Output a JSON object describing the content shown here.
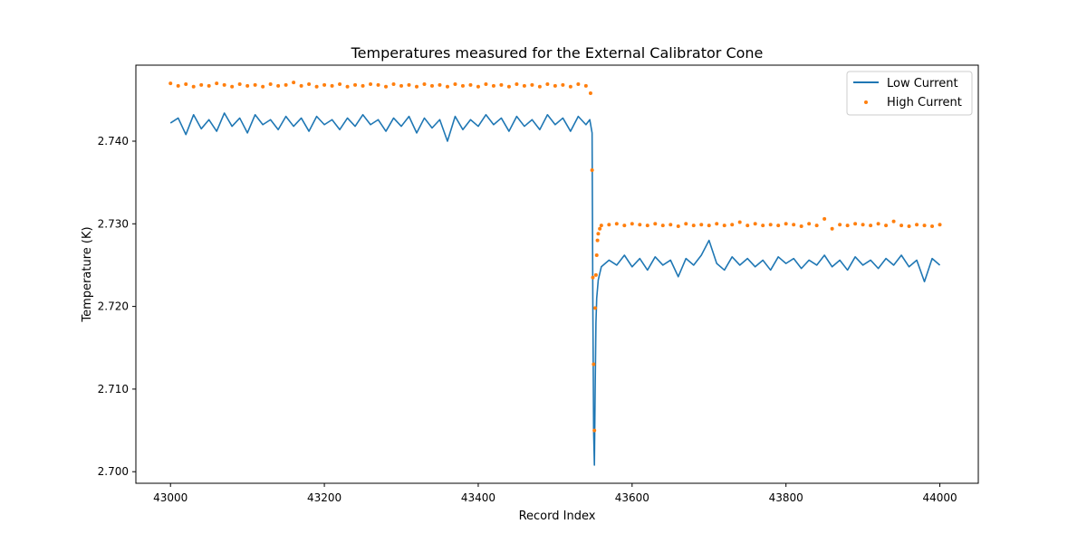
{
  "chart_data": {
    "type": "line",
    "title": "Temperatures measured for the External Calibrator Cone",
    "xlabel": "Record Index",
    "ylabel": "Temperature (K)",
    "xlim": [
      42955,
      44050
    ],
    "ylim": [
      2.6986,
      2.7492
    ],
    "xticks": [
      43000,
      43200,
      43400,
      43600,
      43800,
      44000
    ],
    "xtick_labels": [
      "43000",
      "43200",
      "43400",
      "43600",
      "43800",
      "44000"
    ],
    "yticks": [
      2.7,
      2.71,
      2.72,
      2.73,
      2.74
    ],
    "ytick_labels": [
      "2.700",
      "2.710",
      "2.720",
      "2.730",
      "2.740"
    ],
    "grid": false,
    "legend_position": "top-right",
    "series": [
      {
        "name": "Low Current",
        "style": "line",
        "color": "#1f77b4",
        "x": [
          43000,
          43010,
          43020,
          43030,
          43040,
          43050,
          43060,
          43070,
          43080,
          43090,
          43100,
          43110,
          43120,
          43130,
          43140,
          43150,
          43160,
          43170,
          43180,
          43190,
          43200,
          43210,
          43220,
          43230,
          43240,
          43250,
          43260,
          43270,
          43280,
          43290,
          43300,
          43310,
          43320,
          43330,
          43340,
          43350,
          43360,
          43370,
          43380,
          43390,
          43400,
          43410,
          43420,
          43430,
          43440,
          43450,
          43460,
          43470,
          43480,
          43490,
          43500,
          43510,
          43520,
          43530,
          43540,
          43545,
          43548,
          43549,
          43550,
          43551,
          43552,
          43553,
          43554,
          43556,
          43558,
          43560,
          43565,
          43570,
          43580,
          43590,
          43600,
          43610,
          43620,
          43630,
          43640,
          43650,
          43660,
          43670,
          43680,
          43690,
          43700,
          43710,
          43720,
          43730,
          43740,
          43750,
          43760,
          43770,
          43780,
          43790,
          43800,
          43810,
          43820,
          43830,
          43840,
          43850,
          43860,
          43870,
          43880,
          43890,
          43900,
          43910,
          43920,
          43930,
          43940,
          43950,
          43960,
          43970,
          43980,
          43990,
          44000
        ],
        "values": [
          2.7422,
          2.7428,
          2.7408,
          2.7432,
          2.7415,
          2.7426,
          2.7412,
          2.7434,
          2.7418,
          2.7428,
          2.741,
          2.7432,
          2.742,
          2.7426,
          2.7414,
          2.743,
          2.7418,
          2.7428,
          2.7412,
          2.743,
          2.742,
          2.7426,
          2.7414,
          2.7428,
          2.7418,
          2.7432,
          2.742,
          2.7426,
          2.7412,
          2.7428,
          2.7418,
          2.743,
          2.741,
          2.7428,
          2.7416,
          2.7426,
          2.74,
          2.743,
          2.7414,
          2.7426,
          2.7418,
          2.7432,
          2.742,
          2.7428,
          2.7412,
          2.743,
          2.7418,
          2.7426,
          2.7414,
          2.7432,
          2.742,
          2.7428,
          2.7412,
          2.743,
          2.742,
          2.7426,
          2.741,
          2.72,
          2.705,
          2.7008,
          2.71,
          2.718,
          2.721,
          2.7232,
          2.724,
          2.7248,
          2.7252,
          2.7256,
          2.725,
          2.7262,
          2.7248,
          2.7258,
          2.7244,
          2.726,
          2.725,
          2.7256,
          2.7236,
          2.7258,
          2.725,
          2.7262,
          2.728,
          2.7252,
          2.7244,
          2.726,
          2.725,
          2.7258,
          2.7248,
          2.7256,
          2.7244,
          2.726,
          2.7252,
          2.7258,
          2.7246,
          2.7256,
          2.725,
          2.7262,
          2.7248,
          2.7256,
          2.7244,
          2.726,
          2.725,
          2.7256,
          2.7246,
          2.7258,
          2.725,
          2.7262,
          2.7248,
          2.7256,
          2.723,
          2.7258,
          2.725
        ]
      },
      {
        "name": "High Current",
        "style": "scatter",
        "color": "#ff7f0e",
        "x": [
          43000,
          43010,
          43020,
          43030,
          43040,
          43050,
          43060,
          43070,
          43080,
          43090,
          43100,
          43110,
          43120,
          43130,
          43140,
          43150,
          43160,
          43170,
          43180,
          43190,
          43200,
          43210,
          43220,
          43230,
          43240,
          43250,
          43260,
          43270,
          43280,
          43290,
          43300,
          43310,
          43320,
          43330,
          43340,
          43350,
          43360,
          43370,
          43380,
          43390,
          43400,
          43410,
          43420,
          43430,
          43440,
          43450,
          43460,
          43470,
          43480,
          43490,
          43500,
          43510,
          43520,
          43530,
          43540,
          43546,
          43548,
          43549,
          43550,
          43551,
          43552,
          43553,
          43554,
          43555,
          43556,
          43558,
          43560,
          43570,
          43580,
          43590,
          43600,
          43610,
          43620,
          43630,
          43640,
          43650,
          43660,
          43670,
          43680,
          43690,
          43700,
          43710,
          43720,
          43730,
          43740,
          43750,
          43760,
          43770,
          43780,
          43790,
          43800,
          43810,
          43820,
          43830,
          43840,
          43850,
          43860,
          43870,
          43880,
          43890,
          43900,
          43910,
          43920,
          43930,
          43940,
          43950,
          43960,
          43970,
          43980,
          43990,
          44000
        ],
        "values": [
          2.747,
          2.7467,
          2.7469,
          2.7466,
          2.7468,
          2.7467,
          2.747,
          2.7468,
          2.7466,
          2.7469,
          2.7467,
          2.7468,
          2.7466,
          2.7469,
          2.7467,
          2.7468,
          2.7471,
          2.7467,
          2.7469,
          2.7466,
          2.7468,
          2.7467,
          2.7469,
          2.7466,
          2.7468,
          2.7467,
          2.7469,
          2.7468,
          2.7466,
          2.7469,
          2.7467,
          2.7468,
          2.7466,
          2.7469,
          2.7467,
          2.7468,
          2.7466,
          2.7469,
          2.7467,
          2.7468,
          2.7466,
          2.7469,
          2.7467,
          2.7468,
          2.7466,
          2.7469,
          2.7467,
          2.7468,
          2.7466,
          2.7469,
          2.7467,
          2.7468,
          2.7466,
          2.7469,
          2.7467,
          2.7458,
          2.7365,
          2.7235,
          2.713,
          2.705,
          2.7198,
          2.7238,
          2.7262,
          2.728,
          2.7288,
          2.7294,
          2.7298,
          2.7299,
          2.73,
          2.7298,
          2.73,
          2.7299,
          2.7298,
          2.73,
          2.7298,
          2.7299,
          2.7297,
          2.73,
          2.7298,
          2.7299,
          2.7298,
          2.73,
          2.7298,
          2.7299,
          2.7302,
          2.7298,
          2.73,
          2.7298,
          2.7299,
          2.7298,
          2.73,
          2.7299,
          2.7297,
          2.73,
          2.7298,
          2.7306,
          2.7294,
          2.7299,
          2.7298,
          2.73,
          2.7299,
          2.7298,
          2.73,
          2.7298,
          2.7303,
          2.7298,
          2.7297,
          2.7299,
          2.7298,
          2.7297,
          2.7299
        ]
      }
    ]
  }
}
